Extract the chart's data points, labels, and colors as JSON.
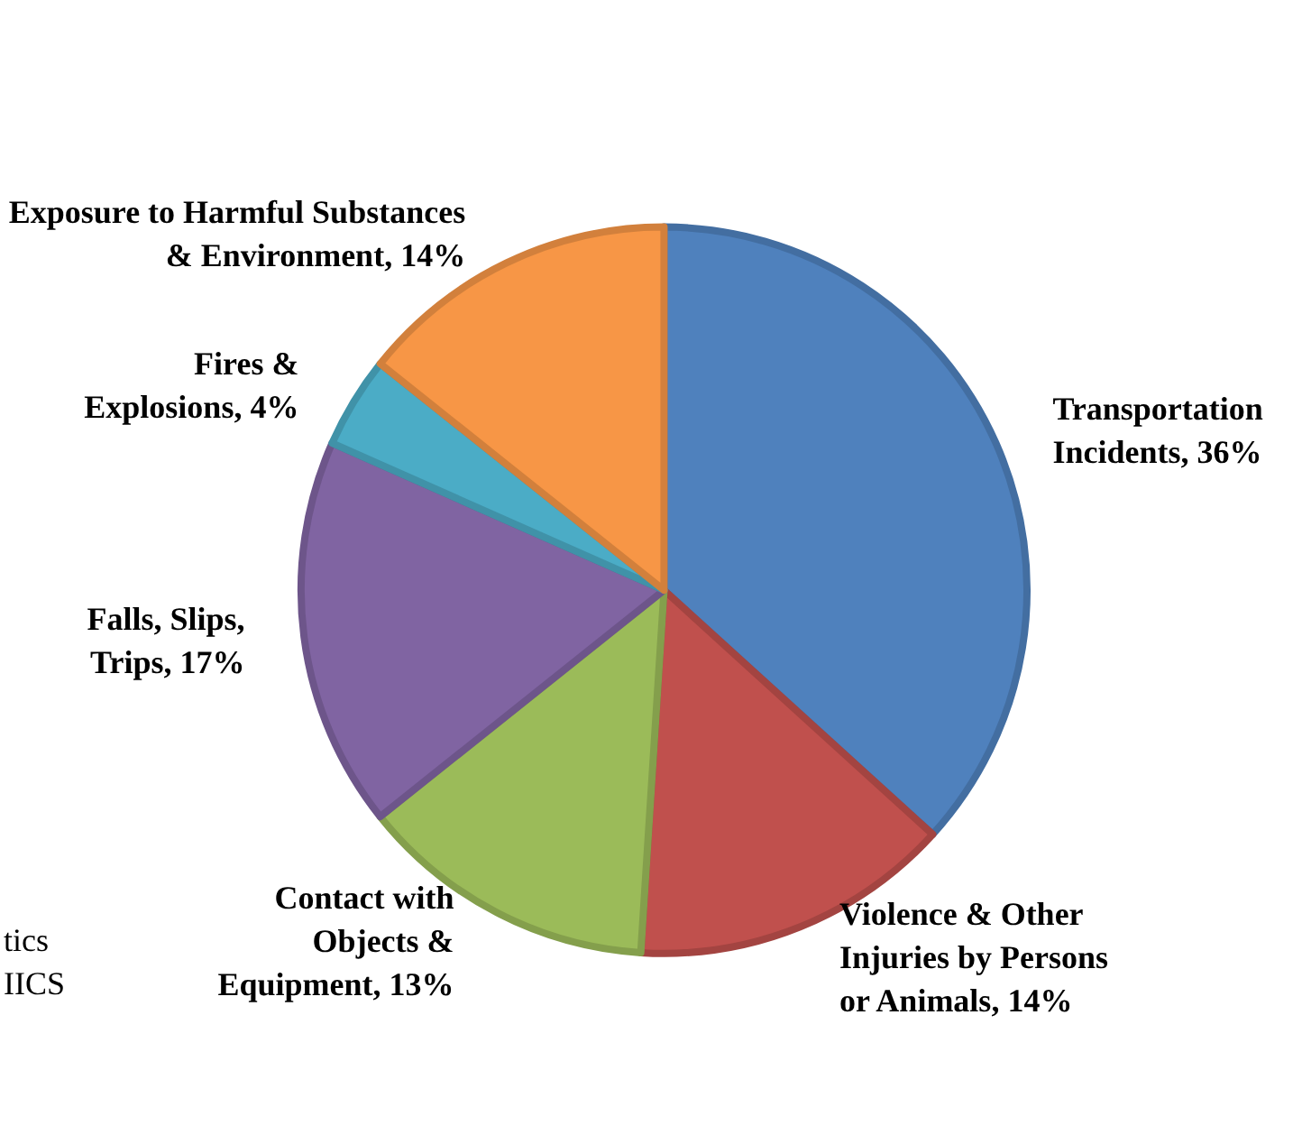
{
  "chart_data": {
    "type": "pie",
    "categories": [
      "Transportation Incidents",
      "Violence & Other Injuries by Persons or Animals",
      "Contact with Objects & Equipment",
      "Falls, Slips, Trips",
      "Fires & Explosions",
      "Exposure to Harmful Substances & Environment"
    ],
    "values": [
      36,
      14,
      13,
      17,
      4,
      14
    ],
    "value_labels": [
      "36%",
      "14%",
      "13%",
      "17%",
      "4%",
      "14%"
    ],
    "colors": [
      "#4f81bd",
      "#c0504d",
      "#9bbb59",
      "#8064a2",
      "#4bacc6",
      "#f79646"
    ],
    "legend": false,
    "annotations": [
      "tics",
      "IICS"
    ]
  }
}
